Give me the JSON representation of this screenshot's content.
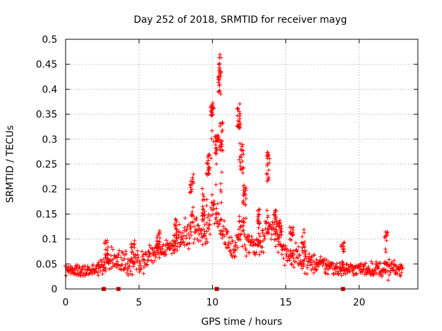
{
  "chart_data": {
    "type": "scatter",
    "title": "Day 252 of 2018, SRMTID for receiver mayg",
    "xlabel": "GPS time / hours",
    "ylabel": "SRMTID / TECUs",
    "xlim": [
      0,
      24
    ],
    "ylim": [
      0,
      0.5
    ],
    "grid": true,
    "xticks": [
      0,
      5,
      10,
      15,
      20
    ],
    "xtick_labels": [
      "0",
      "5",
      "10",
      "15",
      "20"
    ],
    "yticks": [
      0,
      0.05,
      0.1,
      0.15,
      0.2,
      0.25,
      0.3,
      0.35,
      0.4,
      0.45,
      0.5
    ],
    "ytick_labels": [
      "0",
      "0.05",
      "0.1",
      "0.15",
      "0.2",
      "0.25",
      "0.3",
      "0.35",
      "0.4",
      "0.45",
      "0.5"
    ],
    "series": [
      {
        "name": "SRMTID",
        "color": "#ff0000",
        "marker": "plus",
        "data_span_hours": [
          0,
          23
        ],
        "envelope": [
          {
            "x": 0.0,
            "y": 0.04,
            "spread": 0.015
          },
          {
            "x": 1.0,
            "y": 0.035,
            "spread": 0.015
          },
          {
            "x": 2.0,
            "y": 0.04,
            "spread": 0.015
          },
          {
            "x": 2.5,
            "y": 0.045,
            "spread": 0.02
          },
          {
            "x": 3.0,
            "y": 0.06,
            "spread": 0.025
          },
          {
            "x": 4.0,
            "y": 0.05,
            "spread": 0.025
          },
          {
            "x": 5.0,
            "y": 0.055,
            "spread": 0.025
          },
          {
            "x": 6.0,
            "y": 0.07,
            "spread": 0.025
          },
          {
            "x": 7.0,
            "y": 0.08,
            "spread": 0.025
          },
          {
            "x": 8.0,
            "y": 0.1,
            "spread": 0.03
          },
          {
            "x": 8.5,
            "y": 0.12,
            "spread": 0.03
          },
          {
            "x": 9.0,
            "y": 0.13,
            "spread": 0.035
          },
          {
            "x": 9.5,
            "y": 0.1,
            "spread": 0.03
          },
          {
            "x": 10.0,
            "y": 0.16,
            "spread": 0.05
          },
          {
            "x": 10.5,
            "y": 0.13,
            "spread": 0.04
          },
          {
            "x": 11.0,
            "y": 0.1,
            "spread": 0.03
          },
          {
            "x": 11.5,
            "y": 0.08,
            "spread": 0.03
          },
          {
            "x": 12.0,
            "y": 0.12,
            "spread": 0.04
          },
          {
            "x": 12.5,
            "y": 0.09,
            "spread": 0.03
          },
          {
            "x": 13.0,
            "y": 0.08,
            "spread": 0.03
          },
          {
            "x": 13.5,
            "y": 0.1,
            "spread": 0.03
          },
          {
            "x": 14.0,
            "y": 0.12,
            "spread": 0.03
          },
          {
            "x": 14.5,
            "y": 0.1,
            "spread": 0.03
          },
          {
            "x": 15.0,
            "y": 0.07,
            "spread": 0.025
          },
          {
            "x": 16.0,
            "y": 0.06,
            "spread": 0.025
          },
          {
            "x": 17.0,
            "y": 0.05,
            "spread": 0.02
          },
          {
            "x": 18.0,
            "y": 0.045,
            "spread": 0.02
          },
          {
            "x": 19.0,
            "y": 0.04,
            "spread": 0.015
          },
          {
            "x": 20.0,
            "y": 0.04,
            "spread": 0.015
          },
          {
            "x": 21.0,
            "y": 0.04,
            "spread": 0.015
          },
          {
            "x": 22.0,
            "y": 0.04,
            "spread": 0.02
          },
          {
            "x": 23.0,
            "y": 0.04,
            "spread": 0.015
          }
        ],
        "bursts": [
          {
            "x": 2.8,
            "y": 0.09,
            "spread": 0.015
          },
          {
            "x": 4.6,
            "y": 0.09,
            "spread": 0.015
          },
          {
            "x": 6.3,
            "y": 0.11,
            "spread": 0.015
          },
          {
            "x": 7.5,
            "y": 0.13,
            "spread": 0.02
          },
          {
            "x": 8.6,
            "y": 0.22,
            "spread": 0.02
          },
          {
            "x": 9.4,
            "y": 0.19,
            "spread": 0.03
          },
          {
            "x": 9.7,
            "y": 0.26,
            "spread": 0.02
          },
          {
            "x": 10.0,
            "y": 0.37,
            "spread": 0.015
          },
          {
            "x": 10.3,
            "y": 0.3,
            "spread": 0.02
          },
          {
            "x": 10.5,
            "y": 0.45,
            "spread": 0.04
          },
          {
            "x": 10.6,
            "y": 0.32,
            "spread": 0.03
          },
          {
            "x": 11.8,
            "y": 0.36,
            "spread": 0.03
          },
          {
            "x": 12.0,
            "y": 0.28,
            "spread": 0.04
          },
          {
            "x": 12.2,
            "y": 0.2,
            "spread": 0.02
          },
          {
            "x": 13.2,
            "y": 0.15,
            "spread": 0.02
          },
          {
            "x": 13.8,
            "y": 0.26,
            "spread": 0.03
          },
          {
            "x": 14.3,
            "y": 0.15,
            "spread": 0.02
          },
          {
            "x": 14.6,
            "y": 0.13,
            "spread": 0.015
          },
          {
            "x": 15.4,
            "y": 0.12,
            "spread": 0.015
          },
          {
            "x": 16.2,
            "y": 0.11,
            "spread": 0.02
          },
          {
            "x": 18.9,
            "y": 0.09,
            "spread": 0.01
          },
          {
            "x": 21.8,
            "y": 0.11,
            "spread": 0.01
          }
        ]
      }
    ],
    "axis_markers_hours": [
      2.6,
      3.6,
      10.3,
      18.9
    ]
  }
}
